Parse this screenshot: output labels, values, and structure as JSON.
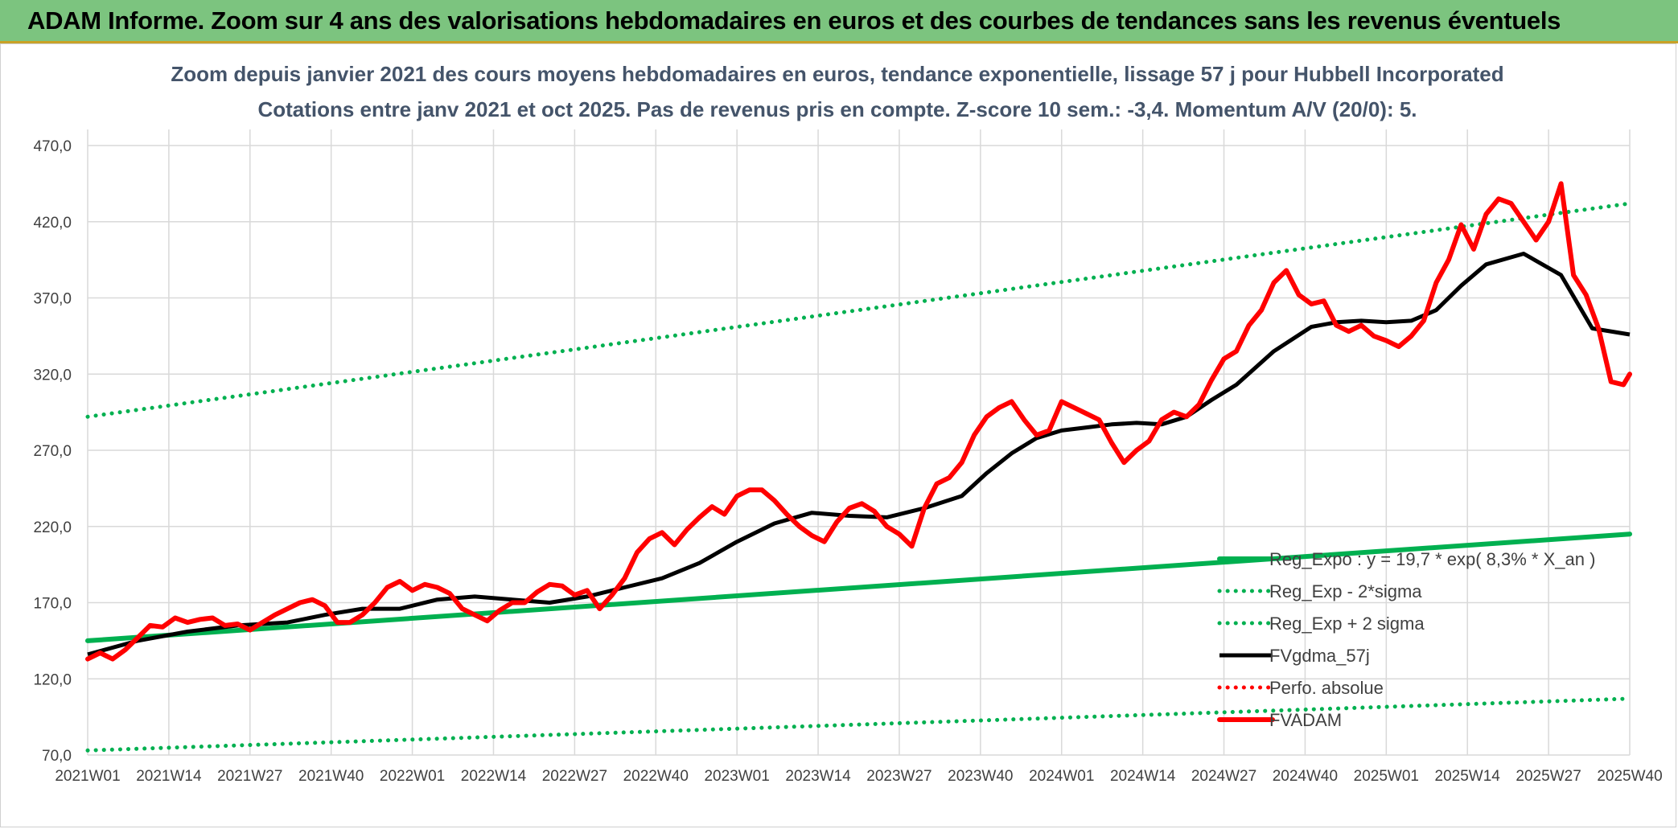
{
  "banner": {
    "title": "ADAM Informe. Zoom sur 4 ans des valorisations hebdomadaires en euros et des courbes de tendances sans les revenus éventuels"
  },
  "chart_data": {
    "type": "line",
    "title": "Zoom depuis janvier 2021 des cours moyens hebdomadaires en euros, tendance exponentielle, lissage 57 j pour Hubbell Incorporated",
    "subtitle": "Cotations entre janv 2021 et oct 2025. Pas de revenus pris en compte. Z-score 10 sem.: -3,4. Momentum A/V (20/0): 5.",
    "xlabel": "",
    "ylabel": "",
    "ylim": [
      70,
      470
    ],
    "y_ticks": [
      "470,0",
      "420,0",
      "370,0",
      "320,0",
      "270,0",
      "220,0",
      "170,0",
      "120,0",
      "70,0"
    ],
    "x_ticks": [
      "2021W01",
      "2021W14",
      "2021W27",
      "2021W40",
      "2022W01",
      "2022W14",
      "2022W27",
      "2022W40",
      "2023W01",
      "2023W14",
      "2023W27",
      "2023W40",
      "2024W01",
      "2024W14",
      "2024W27",
      "2024W40",
      "2025W01",
      "2025W14",
      "2025W27",
      "2025W40"
    ],
    "grid": true,
    "legend_position": "bottom-right",
    "colors": {
      "reg": "#00b050",
      "smooth": "#000000",
      "price": "#ff0000",
      "perf": "#ff0000"
    },
    "series": [
      {
        "name": "Reg_Expo : y = 19,7 * exp( 8,3% *  X_an )",
        "style": "thick-solid",
        "x": [
          0,
          247
        ],
        "values": [
          145,
          215
        ]
      },
      {
        "name": "Reg_Exp - 2*sigma",
        "style": "dotted",
        "x": [
          0,
          247
        ],
        "values": [
          73,
          107
        ]
      },
      {
        "name": "Reg_Exp + 2 sigma",
        "style": "dotted",
        "x": [
          0,
          247
        ],
        "values": [
          292,
          432
        ]
      },
      {
        "name": "FVgdma_57j",
        "style": "solid",
        "x": [
          0,
          8,
          16,
          24,
          32,
          38,
          44,
          50,
          56,
          62,
          68,
          74,
          80,
          86,
          92,
          98,
          104,
          110,
          116,
          122,
          128,
          134,
          140,
          144,
          148,
          152,
          156,
          160,
          164,
          168,
          172,
          176,
          180,
          184,
          190,
          196,
          200,
          204,
          208,
          212,
          216,
          220,
          224,
          230,
          236,
          241,
          247
        ],
        "values": [
          136,
          145,
          151,
          155,
          157,
          162,
          166,
          166,
          172,
          174,
          172,
          170,
          174,
          180,
          186,
          196,
          210,
          222,
          229,
          227,
          226,
          232,
          240,
          255,
          268,
          278,
          283,
          285,
          287,
          288,
          287,
          292,
          303,
          313,
          335,
          351,
          354,
          355,
          354,
          355,
          362,
          378,
          392,
          399,
          385,
          350,
          346
        ]
      },
      {
        "name": "Perfo. absolue",
        "style": "dotted",
        "x": [],
        "values": []
      },
      {
        "name": "FVADAM",
        "style": "thick-solid",
        "x": [
          0,
          2,
          4,
          6,
          8,
          10,
          12,
          14,
          16,
          18,
          20,
          22,
          24,
          26,
          28,
          30,
          32,
          34,
          36,
          38,
          40,
          42,
          44,
          46,
          48,
          50,
          52,
          54,
          56,
          58,
          60,
          62,
          64,
          66,
          68,
          70,
          72,
          74,
          76,
          78,
          80,
          82,
          84,
          86,
          88,
          90,
          92,
          94,
          96,
          98,
          100,
          102,
          104,
          106,
          108,
          110,
          112,
          114,
          116,
          118,
          120,
          122,
          124,
          126,
          128,
          130,
          132,
          134,
          136,
          138,
          140,
          142,
          144,
          146,
          148,
          150,
          152,
          154,
          156,
          158,
          160,
          162,
          164,
          166,
          168,
          170,
          172,
          174,
          176,
          178,
          180,
          182,
          184,
          186,
          188,
          190,
          192,
          194,
          196,
          198,
          200,
          202,
          204,
          206,
          208,
          210,
          212,
          214,
          216,
          218,
          220,
          222,
          224,
          226,
          228,
          230,
          232,
          234,
          236,
          238,
          240,
          242,
          244,
          246,
          247
        ],
        "values": [
          133,
          137,
          133,
          139,
          147,
          155,
          154,
          160,
          157,
          159,
          160,
          155,
          156,
          152,
          157,
          162,
          166,
          170,
          172,
          168,
          157,
          157,
          162,
          170,
          180,
          184,
          178,
          182,
          180,
          176,
          166,
          162,
          158,
          165,
          170,
          170,
          177,
          182,
          181,
          175,
          178,
          166,
          175,
          186,
          203,
          212,
          216,
          208,
          218,
          226,
          233,
          228,
          240,
          244,
          244,
          237,
          228,
          220,
          214,
          210,
          223,
          232,
          235,
          230,
          220,
          215,
          207,
          232,
          248,
          252,
          262,
          280,
          292,
          298,
          302,
          290,
          280,
          283,
          302,
          298,
          294,
          290,
          275,
          262,
          270,
          276,
          290,
          295,
          292,
          300,
          316,
          330,
          335,
          352,
          362,
          380,
          388,
          372,
          366,
          368,
          352,
          348,
          352,
          345,
          342,
          338,
          345,
          355,
          380,
          395,
          418,
          402,
          425,
          435,
          432,
          420,
          408,
          420,
          445,
          385,
          372,
          350,
          315,
          313,
          320
        ]
      }
    ],
    "legend": [
      {
        "label": "Reg_Expo : y = 19,7 * exp( 8,3% *  X_an )",
        "color": "#00b050",
        "style": "thick-solid"
      },
      {
        "label": "Reg_Exp - 2*sigma",
        "color": "#00b050",
        "style": "dotted"
      },
      {
        "label": "Reg_Exp + 2 sigma",
        "color": "#00b050",
        "style": "dotted"
      },
      {
        "label": "FVgdma_57j",
        "color": "#000000",
        "style": "solid"
      },
      {
        "label": "Perfo. absolue",
        "color": "#ff0000",
        "style": "dotted"
      },
      {
        "label": "FVADAM",
        "color": "#ff0000",
        "style": "thick-solid"
      }
    ]
  }
}
